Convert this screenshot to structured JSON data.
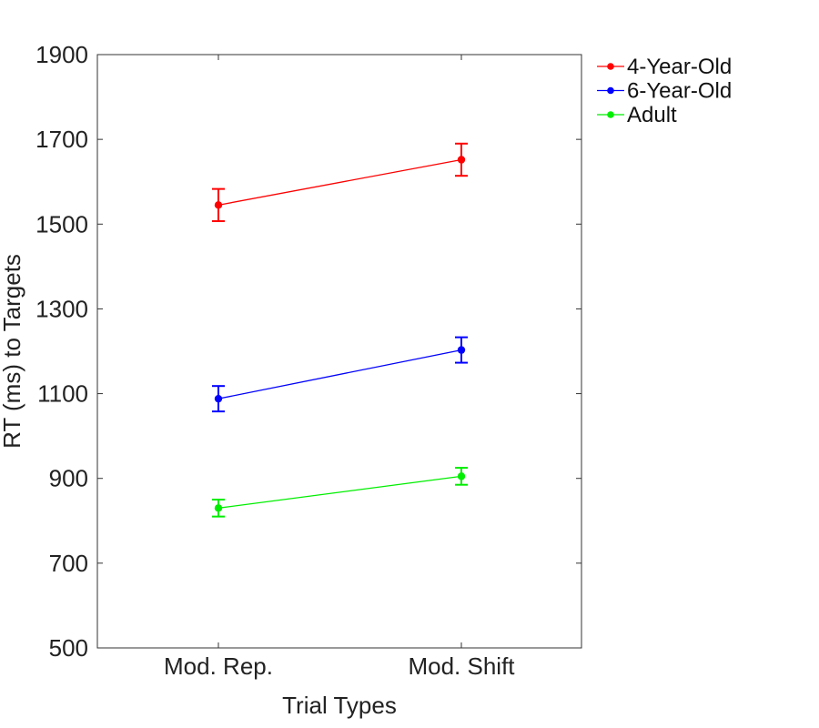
{
  "chart_data": {
    "type": "line",
    "categories": [
      "Mod. Rep.",
      "Mod. Shift"
    ],
    "xlabel": "Trial Types",
    "ylabel": "RT (ms) to Targets",
    "ylim": [
      500,
      1900
    ],
    "yticks": [
      500,
      700,
      900,
      1100,
      1300,
      1500,
      1700,
      1900
    ],
    "grid": false,
    "legend_position": "outside-top-right",
    "series": [
      {
        "name": "4-Year-Old",
        "color": "#ff0000",
        "values": [
          1545,
          1652
        ],
        "error": [
          38,
          38
        ]
      },
      {
        "name": "6-Year-Old",
        "color": "#0000ff",
        "values": [
          1088,
          1203
        ],
        "error": [
          30,
          30
        ]
      },
      {
        "name": "Adult",
        "color": "#00ee00",
        "values": [
          830,
          905
        ],
        "error": [
          20,
          20
        ]
      }
    ]
  }
}
